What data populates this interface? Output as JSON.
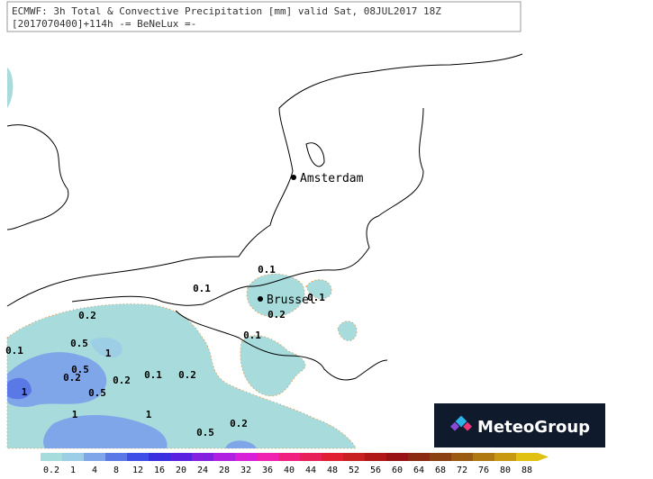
{
  "header": {
    "line1": "ECMWF: 3h Total & Convective Precipitation [mm] valid Sat, 08JUL2017 18Z",
    "line2": "[2017070400]+114h -= BeNeLux =-"
  },
  "cities": [
    "Amsterdam",
    "Brussel"
  ],
  "contour_labels": [
    "0.1",
    "0.1",
    "0.1",
    "0.1",
    "0.1",
    "0.1",
    "0.2",
    "0.2",
    "0.2",
    "0.2",
    "0.2",
    "0.2",
    "0.5",
    "0.5",
    "0.5",
    "0.5",
    "1",
    "1",
    "1",
    "1"
  ],
  "legend": {
    "labels": [
      0.2,
      1,
      4,
      8,
      12,
      16,
      20,
      24,
      28,
      32,
      36,
      40,
      44,
      48,
      52,
      56,
      60,
      64,
      68,
      72,
      76,
      80,
      88
    ],
    "colors": [
      "#a6dcdc",
      "#9ccfe6",
      "#7fa6e8",
      "#5a78e6",
      "#3f4ee6",
      "#3a2fe0",
      "#5a22e0",
      "#8420e0",
      "#b020e0",
      "#d820d8",
      "#f020b0",
      "#f02080",
      "#e8205a",
      "#e02030",
      "#c82020",
      "#b01818",
      "#981414",
      "#8a2a10",
      "#8a4010",
      "#9a5a10",
      "#b07810",
      "#c89810",
      "#e0c010"
    ]
  },
  "logo": "MeteoGroup"
}
